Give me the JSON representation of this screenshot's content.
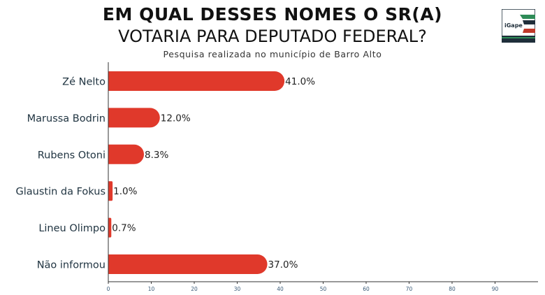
{
  "header": {
    "title_line1": "EM QUAL DESSES NOMES O SR(A)",
    "title_line2": "VOTARIA PARA DEPUTADO FEDERAL?",
    "subtitle": "Pesquisa realizada no município de Barro Alto",
    "logo_text": "iGape"
  },
  "colors": {
    "bar": "#e0392b",
    "axis": "#333333",
    "label": "#1f3340",
    "logo_dark": "#1f2e3a",
    "logo_green": "#2e8b57",
    "logo_red": "#c0392b"
  },
  "chart_data": {
    "type": "bar",
    "orientation": "horizontal",
    "categories": [
      "Zé Nelto",
      "Marussa Bodrin",
      "Rubens Otoni",
      "Glaustin da Fokus",
      "Lineu Olimpo",
      "Não informou"
    ],
    "values": [
      41.0,
      12.0,
      8.3,
      1.0,
      0.7,
      37.0
    ],
    "data_labels": [
      "41.0%",
      "12.0%",
      "8.3%",
      "1.0%",
      "0.7%",
      "37.0%"
    ],
    "xticks": [
      0,
      10,
      20,
      30,
      40,
      50,
      60,
      70,
      80,
      90
    ],
    "xlim": [
      0,
      100
    ],
    "grid": false,
    "title": "EM QUAL DESSES NOMES O SR(A) VOTARIA PARA DEPUTADO FEDERAL?",
    "subtitle": "Pesquisa realizada no município de Barro Alto"
  }
}
